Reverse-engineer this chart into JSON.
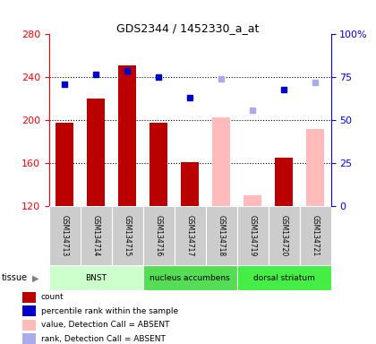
{
  "title": "GDS2344 / 1452330_a_at",
  "samples": [
    "GSM134713",
    "GSM134714",
    "GSM134715",
    "GSM134716",
    "GSM134717",
    "GSM134718",
    "GSM134719",
    "GSM134720",
    "GSM134721"
  ],
  "ylim_left": [
    120,
    280
  ],
  "ylim_right": [
    0,
    100
  ],
  "yticks_left": [
    120,
    160,
    200,
    240,
    280
  ],
  "yticks_right": [
    0,
    25,
    50,
    75,
    100
  ],
  "bar_values": [
    198,
    220,
    251,
    198,
    161,
    null,
    null,
    165,
    null
  ],
  "bar_absent_values": [
    null,
    null,
    null,
    null,
    null,
    203,
    130,
    null,
    192
  ],
  "bar_color_present": "#bb0000",
  "bar_color_absent": "#ffbbbb",
  "rank_present": [
    71,
    77,
    79,
    75,
    63,
    null,
    null,
    68,
    null
  ],
  "rank_absent": [
    null,
    null,
    null,
    null,
    null,
    74,
    56,
    null,
    72
  ],
  "rank_color_present": "#0000cc",
  "rank_color_absent": "#aaaaee",
  "tissues": [
    {
      "label": "BNST",
      "start": 0,
      "end": 3,
      "color": "#ccffcc"
    },
    {
      "label": "nucleus accumbens",
      "start": 3,
      "end": 6,
      "color": "#55dd55"
    },
    {
      "label": "dorsal striatum",
      "start": 6,
      "end": 9,
      "color": "#44ee44"
    }
  ],
  "tissue_label": "tissue",
  "bar_width": 0.55,
  "legend_items": [
    {
      "color": "#bb0000",
      "label": "count",
      "marker": "s"
    },
    {
      "color": "#0000cc",
      "label": "percentile rank within the sample",
      "marker": "s"
    },
    {
      "color": "#ffbbbb",
      "label": "value, Detection Call = ABSENT",
      "marker": "s"
    },
    {
      "color": "#aaaaee",
      "label": "rank, Detection Call = ABSENT",
      "marker": "s"
    }
  ]
}
